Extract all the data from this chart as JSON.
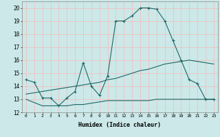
{
  "xlabel": "Humidex (Indice chaleur)",
  "background_color": "#cce8e8",
  "grid_color": "#f0c0c0",
  "line_color": "#1a6666",
  "xlim": [
    -0.5,
    23.5
  ],
  "ylim": [
    12,
    20.5
  ],
  "yticks": [
    12,
    13,
    14,
    15,
    16,
    17,
    18,
    19,
    20
  ],
  "xticks": [
    0,
    1,
    2,
    3,
    4,
    5,
    6,
    7,
    8,
    9,
    10,
    11,
    12,
    13,
    14,
    15,
    16,
    17,
    18,
    19,
    20,
    21,
    22,
    23
  ],
  "line1_x": [
    0,
    1,
    2,
    3,
    4,
    5,
    6,
    7,
    8,
    9,
    10,
    11,
    12,
    13,
    14,
    15,
    16,
    17,
    18,
    19,
    20,
    21,
    22,
    23
  ],
  "line1_y": [
    14.5,
    14.3,
    13.1,
    13.1,
    12.5,
    13.1,
    13.6,
    15.8,
    14.0,
    13.3,
    14.8,
    19.0,
    19.0,
    19.4,
    20.0,
    20.0,
    19.9,
    19.0,
    17.5,
    16.0,
    14.5,
    14.2,
    13.0,
    13.0
  ],
  "line2_x": [
    0,
    2,
    3,
    4,
    5,
    6,
    7,
    8,
    9,
    10,
    11,
    12,
    13,
    14,
    15,
    16,
    17,
    18,
    19,
    20,
    21,
    22,
    23
  ],
  "line2_y": [
    13.0,
    12.5,
    12.5,
    12.5,
    12.5,
    12.6,
    12.6,
    12.7,
    12.8,
    12.9,
    12.9,
    12.9,
    12.9,
    12.9,
    12.9,
    13.0,
    13.0,
    13.0,
    13.0,
    13.0,
    13.0,
    13.0,
    13.0
  ],
  "line3_x": [
    0,
    1,
    2,
    3,
    4,
    5,
    6,
    7,
    8,
    9,
    10,
    11,
    12,
    13,
    14,
    15,
    16,
    17,
    18,
    19,
    20,
    21,
    22,
    23
  ],
  "line3_y": [
    13.4,
    13.5,
    13.6,
    13.7,
    13.8,
    13.9,
    14.0,
    14.1,
    14.2,
    14.3,
    14.5,
    14.6,
    14.8,
    15.0,
    15.2,
    15.3,
    15.5,
    15.7,
    15.8,
    15.9,
    16.0,
    15.9,
    15.8,
    15.7
  ]
}
